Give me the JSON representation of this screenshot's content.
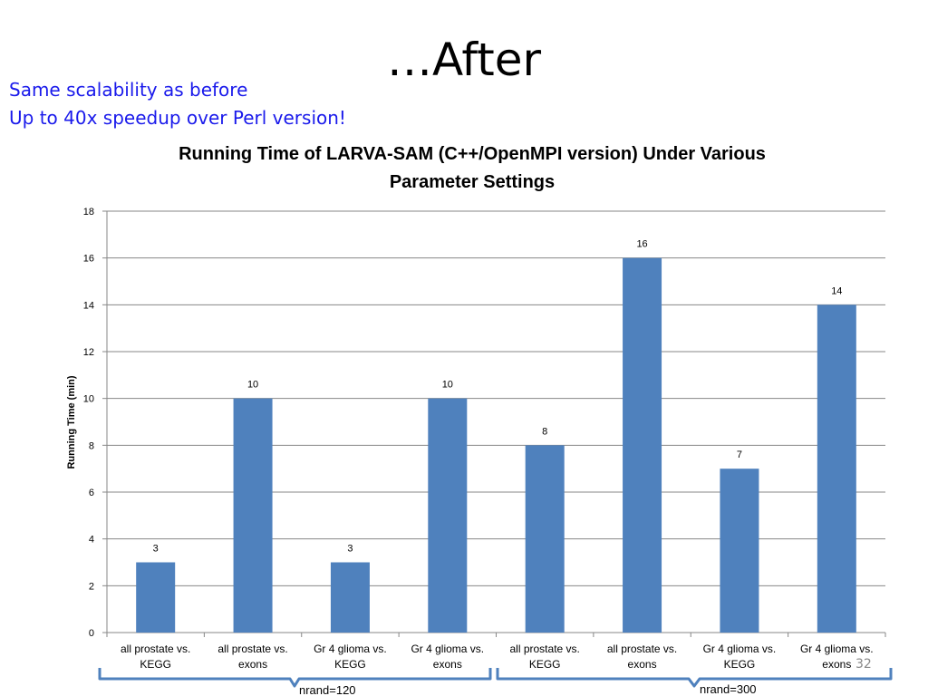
{
  "slide": {
    "title": "…After",
    "notes": [
      "Same scalability as before",
      "Up to 40x speedup over Perl version!"
    ],
    "slide_number": "32",
    "group_labels": [
      "nrand=120",
      "nrand=300"
    ]
  },
  "colors": {
    "bar": "#4f81bd",
    "gridline": "#878787",
    "bracket": "#4f81bd",
    "note_text": "#1a1aeb"
  },
  "chart_data": {
    "type": "bar",
    "title_lines": [
      "Running Time of LARVA-SAM (C++/OpenMPI version) Under Various",
      "Parameter Settings"
    ],
    "ylabel": "Running Time (min)",
    "xlabel": "",
    "ylim": [
      0,
      18
    ],
    "yticks": [
      0,
      2,
      4,
      6,
      8,
      10,
      12,
      14,
      16,
      18
    ],
    "grid": true,
    "legend": "none",
    "categories": [
      [
        "all prostate vs.",
        "KEGG"
      ],
      [
        "all prostate vs.",
        "exons"
      ],
      [
        "Gr 4 glioma vs.",
        "KEGG"
      ],
      [
        "Gr 4 glioma vs.",
        "exons"
      ],
      [
        "all prostate vs.",
        "KEGG"
      ],
      [
        "all prostate vs.",
        "exons"
      ],
      [
        "Gr 4 glioma vs.",
        "KEGG"
      ],
      [
        "Gr 4 glioma vs.",
        "exons"
      ]
    ],
    "values": [
      3,
      10,
      3,
      10,
      8,
      16,
      7,
      14
    ],
    "data_labels": [
      "3",
      "10",
      "3",
      "10",
      "8",
      "16",
      "7",
      "14"
    ]
  }
}
